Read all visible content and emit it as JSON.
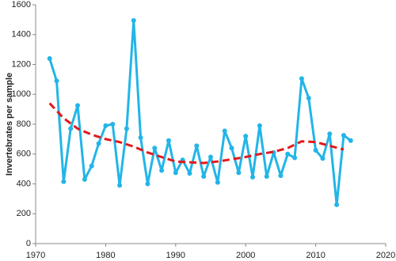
{
  "chart_data": {
    "type": "line",
    "ylabel": "Invertebrates per sample",
    "xlim": [
      1970,
      2020
    ],
    "xticks": [
      1970,
      1980,
      1990,
      2000,
      2010,
      2020
    ],
    "ylim": [
      0,
      1600
    ],
    "yticks": [
      0,
      200,
      400,
      600,
      800,
      1000,
      1200,
      1400,
      1600
    ],
    "grid": false,
    "series": [
      {
        "color": "#22b5e8",
        "markers": true,
        "dashed": false,
        "x": [
          1972,
          1973,
          1974,
          1975,
          1976,
          1977,
          1978,
          1979,
          1980,
          1981,
          1982,
          1983,
          1984,
          1985,
          1986,
          1987,
          1988,
          1989,
          1990,
          1991,
          1992,
          1993,
          1994,
          1995,
          1996,
          1997,
          1998,
          1999,
          2000,
          2001,
          2002,
          2003,
          2004,
          2005,
          2006,
          2007,
          2008,
          2009,
          2010,
          2011,
          2012,
          2013,
          2014,
          2015
        ],
        "values": [
          1240,
          1090,
          415,
          770,
          925,
          430,
          520,
          670,
          790,
          800,
          390,
          770,
          1495,
          710,
          400,
          640,
          490,
          690,
          475,
          560,
          470,
          655,
          450,
          580,
          410,
          755,
          640,
          475,
          720,
          445,
          790,
          450,
          610,
          455,
          600,
          575,
          1105,
          975,
          625,
          570,
          735,
          260,
          725,
          690
        ]
      },
      {
        "color": "#e3191c",
        "markers": false,
        "dashed": true,
        "x": [
          1972,
          1974,
          1976,
          1978,
          1980,
          1982,
          1984,
          1986,
          1988,
          1990,
          1992,
          1994,
          1996,
          1998,
          2000,
          2002,
          2004,
          2006,
          2008,
          2010,
          2012,
          2014
        ],
        "values": [
          940,
          840,
          770,
          730,
          700,
          680,
          650,
          610,
          580,
          550,
          545,
          540,
          550,
          565,
          580,
          600,
          615,
          640,
          685,
          680,
          655,
          630
        ]
      }
    ]
  }
}
